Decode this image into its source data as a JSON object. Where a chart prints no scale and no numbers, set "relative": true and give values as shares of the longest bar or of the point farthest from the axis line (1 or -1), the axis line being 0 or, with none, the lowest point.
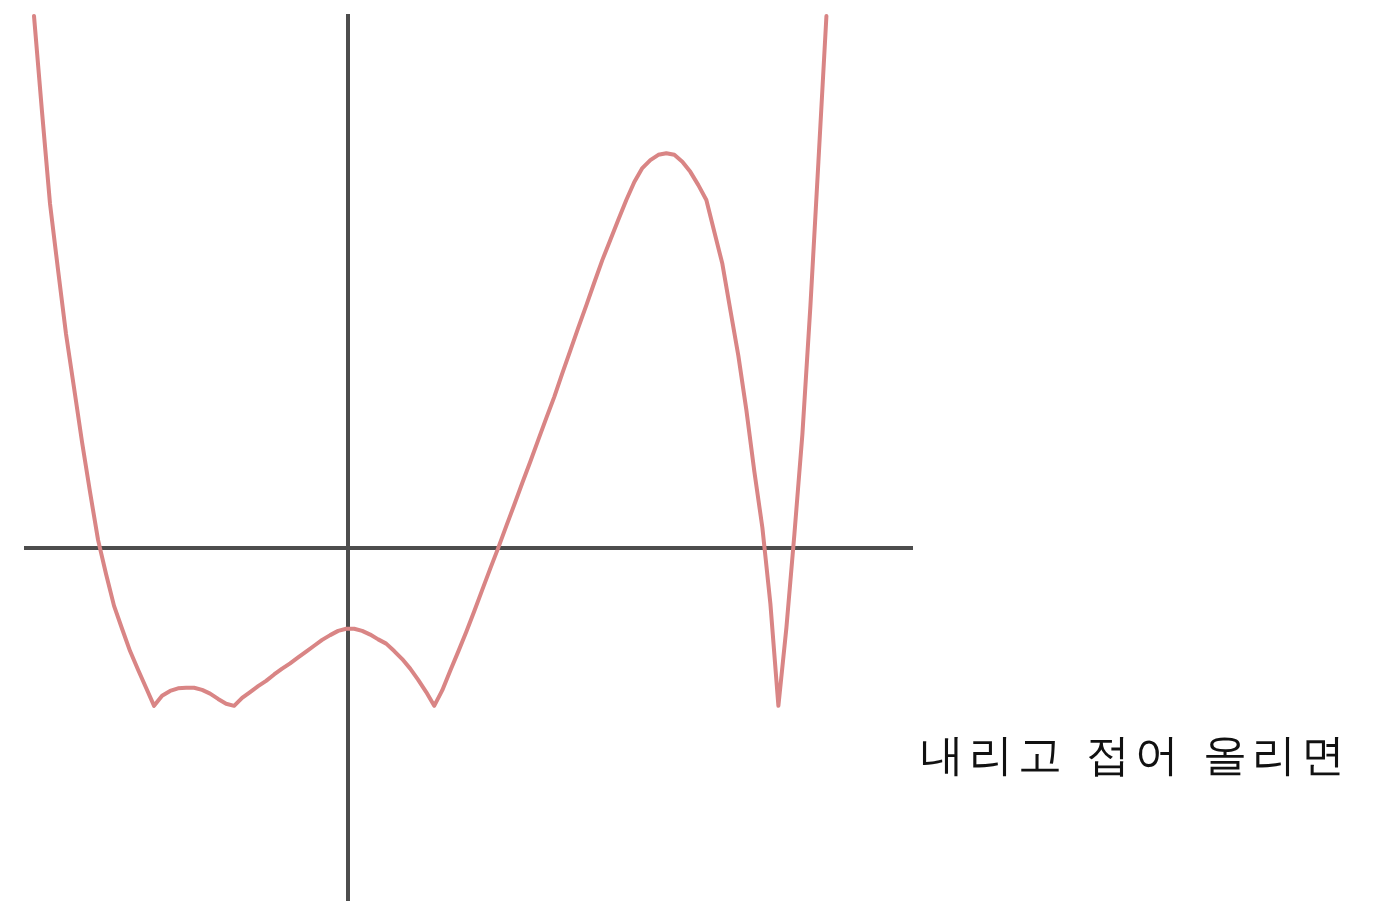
{
  "chart_data": {
    "type": "line",
    "relative": true,
    "marker": "none",
    "categories": [
      null,
      null,
      null,
      null,
      null,
      null,
      null,
      null,
      null,
      null,
      null,
      null,
      null,
      null,
      null,
      null,
      null,
      null,
      null,
      null,
      null,
      null,
      null,
      null,
      null,
      null,
      null,
      null,
      null,
      null,
      null,
      null,
      null,
      null,
      null,
      null,
      null,
      null,
      null,
      null,
      null,
      null,
      null,
      null,
      null,
      null,
      null,
      null,
      null,
      null,
      null,
      null,
      null,
      null,
      null,
      null,
      null,
      null,
      null,
      null,
      null,
      null,
      null,
      null,
      null,
      null,
      null,
      null,
      null,
      null,
      null,
      null,
      null,
      null,
      null,
      null,
      null,
      null,
      null,
      null,
      null,
      null,
      null,
      null,
      null,
      null,
      null,
      null,
      null,
      null,
      null,
      null,
      null,
      null,
      null,
      null,
      null,
      null,
      null,
      null
    ],
    "series": [
      {
        "color": "#d98585",
        "values": [
          1.0,
          0.82,
          0.647,
          0.523,
          0.402,
          0.301,
          0.199,
          0.105,
          0.015,
          -0.049,
          -0.109,
          -0.152,
          -0.194,
          -0.229,
          -0.263,
          -0.297,
          -0.278,
          -0.269,
          -0.264,
          -0.263,
          -0.263,
          -0.267,
          -0.274,
          -0.284,
          -0.293,
          -0.297,
          -0.282,
          -0.271,
          -0.26,
          -0.25,
          -0.238,
          -0.227,
          -0.217,
          -0.206,
          -0.195,
          -0.184,
          -0.173,
          -0.164,
          -0.156,
          -0.152,
          -0.152,
          -0.156,
          -0.163,
          -0.172,
          -0.18,
          -0.194,
          -0.209,
          -0.227,
          -0.248,
          -0.271,
          -0.297,
          -0.268,
          -0.231,
          -0.195,
          -0.158,
          -0.119,
          -0.079,
          -0.039,
          0.0,
          0.041,
          0.081,
          0.122,
          0.162,
          0.203,
          0.244,
          0.284,
          0.328,
          0.371,
          0.414,
          0.456,
          0.499,
          0.541,
          0.579,
          0.617,
          0.654,
          0.688,
          0.714,
          0.729,
          0.739,
          0.742,
          0.739,
          0.726,
          0.707,
          0.682,
          0.654,
          0.594,
          0.534,
          0.447,
          0.361,
          0.259,
          0.143,
          0.038,
          -0.105,
          -0.297,
          -0.15,
          0.026,
          0.214,
          0.455,
          0.726,
          1.0
        ]
      }
    ],
    "annotations": [
      "내리고 접어 올리면"
    ]
  }
}
